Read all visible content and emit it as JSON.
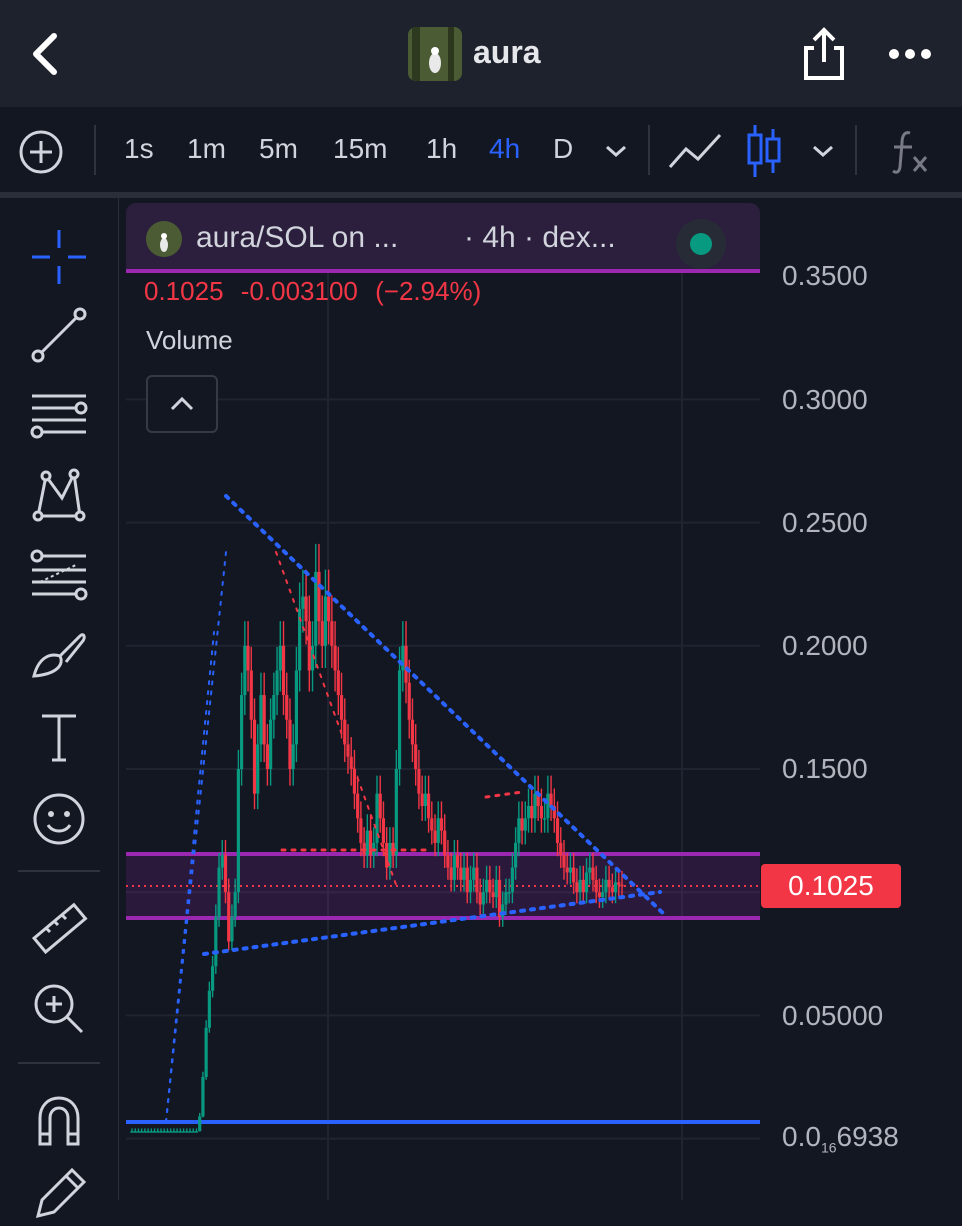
{
  "header": {
    "title": "aura",
    "back_icon": "chevron-left-icon",
    "share_icon": "share-icon",
    "more_icon": "more-horizontal-icon"
  },
  "toolbar": {
    "add_icon": "plus-circle-icon",
    "timeframes": [
      "1s",
      "1m",
      "5m",
      "15m",
      "1h",
      "4h",
      "D"
    ],
    "active_timeframe": "4h",
    "chart_type_icons": [
      "line-chart-icon",
      "candlestick-icon"
    ],
    "indicator_icon": "function-icon"
  },
  "left_tools": [
    "crosshair-icon",
    "trendline-icon",
    "horizontal-lines-icon",
    "pattern-icon",
    "fib-retracement-icon",
    "brush-icon",
    "text-icon",
    "emoji-icon",
    "ruler-icon",
    "zoom-in-icon",
    "magnet-icon",
    "pencil-icon"
  ],
  "legend": {
    "symbol": "aura/SOL on ...",
    "meta": "· 4h · dex...",
    "price": "0.1025",
    "change": "-0.003100",
    "change_pct": "(−2.94%)",
    "volume_label": "Volume"
  },
  "axis": {
    "labels": [
      "0.3500",
      "0.3000",
      "0.2500",
      "0.2000",
      "0.1500",
      "0.05000"
    ],
    "bottom_label_prefix": "0.0",
    "bottom_label_sub": "16",
    "bottom_label_suffix": "6938",
    "current_price": "0.1025"
  },
  "colors": {
    "up": "#089981",
    "down": "#f23645",
    "accent": "#2962ff",
    "zone": "#9c27b0",
    "background": "#131722"
  },
  "chart_data": {
    "type": "candlestick",
    "symbol": "aura/SOL",
    "timeframe": "4h",
    "y_axis_ticks": [
      0.35,
      0.3,
      0.25,
      0.2,
      0.15,
      0.05
    ],
    "current_price": 0.1025,
    "close_series": [
      0.003,
      0.003,
      0.003,
      0.003,
      0.003,
      0.003,
      0.003,
      0.003,
      0.003,
      0.003,
      0.003,
      0.003,
      0.003,
      0.003,
      0.003,
      0.003,
      0.003,
      0.003,
      0.003,
      0.003,
      0.003,
      0.009,
      0.025,
      0.045,
      0.06,
      0.07,
      0.09,
      0.11,
      0.115,
      0.1,
      0.08,
      0.09,
      0.1,
      0.15,
      0.18,
      0.2,
      0.19,
      0.17,
      0.14,
      0.16,
      0.18,
      0.16,
      0.15,
      0.17,
      0.18,
      0.19,
      0.2,
      0.18,
      0.17,
      0.15,
      0.16,
      0.19,
      0.215,
      0.22,
      0.21,
      0.19,
      0.2,
      0.23,
      0.21,
      0.2,
      0.22,
      0.21,
      0.2,
      0.19,
      0.18,
      0.17,
      0.16,
      0.155,
      0.15,
      0.14,
      0.13,
      0.12,
      0.115,
      0.125,
      0.115,
      0.12,
      0.14,
      0.13,
      0.12,
      0.11,
      0.12,
      0.115,
      0.15,
      0.19,
      0.2,
      0.185,
      0.17,
      0.16,
      0.15,
      0.14,
      0.135,
      0.14,
      0.13,
      0.125,
      0.12,
      0.13,
      0.125,
      0.115,
      0.11,
      0.105,
      0.115,
      0.11,
      0.105,
      0.11,
      0.1,
      0.105,
      0.11,
      0.1,
      0.095,
      0.1,
      0.105,
      0.1,
      0.098,
      0.105,
      0.09,
      0.095,
      0.1,
      0.1,
      0.11,
      0.12,
      0.13,
      0.125,
      0.13,
      0.135,
      0.13,
      0.14,
      0.135,
      0.13,
      0.13,
      0.14,
      0.135,
      0.13,
      0.12,
      0.115,
      0.11,
      0.108,
      0.11,
      0.104,
      0.1,
      0.105,
      0.1,
      0.108,
      0.11,
      0.105,
      0.1,
      0.098,
      0.1,
      0.105,
      0.102,
      0.1,
      0.104,
      0.103,
      0.1025
    ]
  }
}
